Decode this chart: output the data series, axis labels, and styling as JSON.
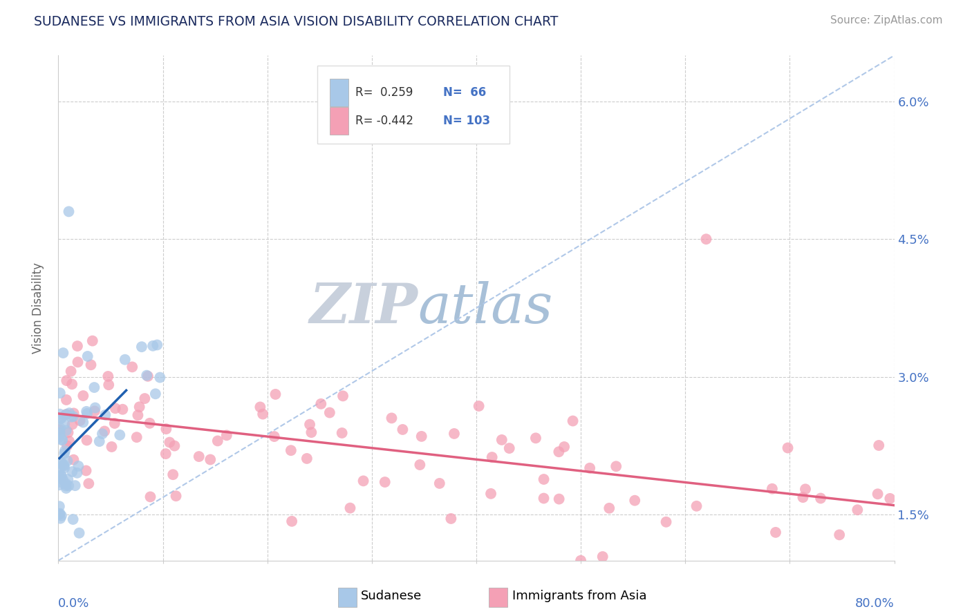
{
  "title": "SUDANESE VS IMMIGRANTS FROM ASIA VISION DISABILITY CORRELATION CHART",
  "source": "Source: ZipAtlas.com",
  "ylabel": "Vision Disability",
  "xlim": [
    0.0,
    0.8
  ],
  "ylim": [
    0.01,
    0.065
  ],
  "ytick_vals": [
    0.015,
    0.03,
    0.045,
    0.06
  ],
  "ytick_labels": [
    "1.5%",
    "3.0%",
    "4.5%",
    "6.0%"
  ],
  "xtick_vals": [
    0.0,
    0.1,
    0.2,
    0.3,
    0.4,
    0.5,
    0.6,
    0.7,
    0.8
  ],
  "legend_r1": "R=  0.259",
  "legend_n1": "N=  66",
  "legend_r2": "R= -0.442",
  "legend_n2": "N= 103",
  "blue_color": "#a8c8e8",
  "pink_color": "#f4a0b5",
  "blue_line_color": "#2060b0",
  "pink_line_color": "#e06080",
  "diag_color": "#b0c8e8",
  "title_color": "#1a2a5e",
  "source_color": "#999999",
  "watermark_zip_color": "#c8d4e8",
  "watermark_atlas_color": "#a0b8d8",
  "background_color": "#ffffff",
  "grid_color": "#cccccc",
  "axis_color": "#cccccc",
  "tick_label_color": "#4472c4",
  "legend_r_color": "#333333",
  "legend_n_color": "#4472c4"
}
